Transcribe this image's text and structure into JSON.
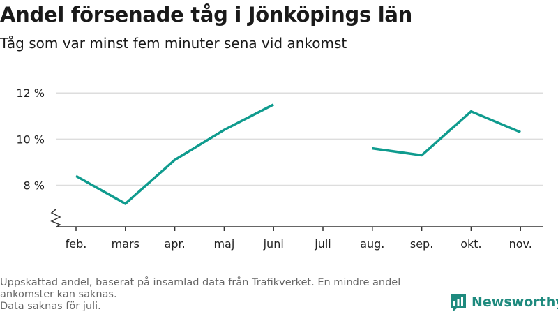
{
  "header": {
    "title": "Andel försenade tåg i Jönköpings län",
    "subtitle": "Tåg som var minst fem minuter sena vid ankomst"
  },
  "chart_data": {
    "type": "line",
    "title": "Andel försenade tåg i Jönköpings län",
    "subtitle": "Tåg som var minst fem minuter sena vid ankomst",
    "categories": [
      "feb.",
      "mars",
      "apr.",
      "maj",
      "juni",
      "juli",
      "aug.",
      "sep.",
      "okt.",
      "nov."
    ],
    "series": [
      {
        "values": [
          8.4,
          7.2,
          9.1,
          10.4,
          11.5,
          null,
          9.6,
          9.3,
          11.2,
          10.3
        ]
      }
    ],
    "yticks": [
      8,
      10,
      12
    ],
    "ytick_labels": [
      "8 %",
      "10 %",
      "12 %"
    ],
    "ylim": [
      6.2,
      12.4
    ],
    "y_axis_break": true,
    "grid": true,
    "line_color": "#0f9b8e"
  },
  "footnote": {
    "line1": "Uppskattad andel, baserat på insamlad data från Trafikverket. En mindre andel ankomster kan saknas.",
    "line2": "Data saknas för juli."
  },
  "brand": {
    "name": "Newsworthy",
    "icon": "bar-chart-icon",
    "color": "#1e8a7e"
  }
}
